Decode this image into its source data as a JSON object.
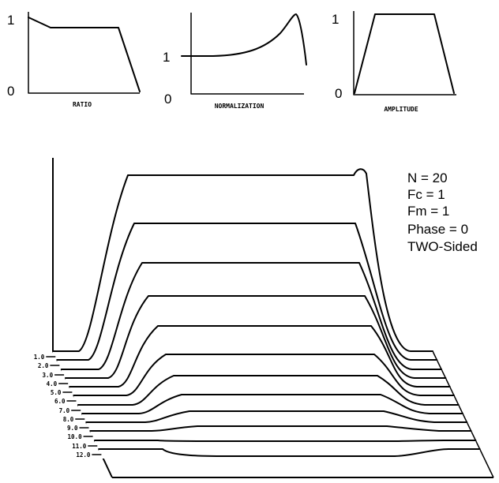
{
  "mini_plots": [
    {
      "label": "RATIO",
      "top_value": "1",
      "bottom_value": "0"
    },
    {
      "label": "NORMALIZATION",
      "mid_value": "1",
      "bottom_value": "0"
    },
    {
      "label": "AMPLITUDE",
      "top_value": "1",
      "bottom_value": "0"
    }
  ],
  "parameters": [
    "N = 20",
    "Fc = 1",
    "Fm = 1",
    "Phase = 0",
    "TWO-Sided"
  ],
  "depth_labels": [
    "1.0",
    "2.0",
    "3.0",
    "4.0",
    "5.0",
    "6.0",
    "7.0",
    "8.0",
    "9.0",
    "10.0",
    "11.0",
    "12.0"
  ]
}
